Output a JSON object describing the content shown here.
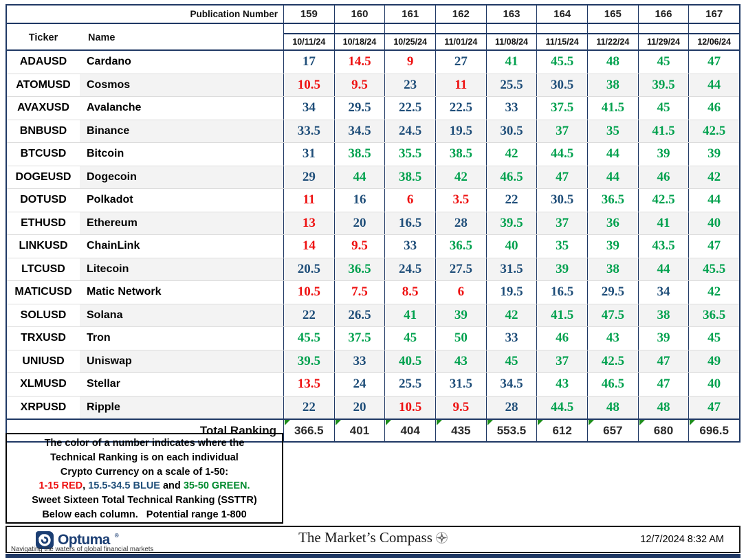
{
  "header": {
    "publication_label": "Publication Number",
    "publication_numbers": [
      "159",
      "160",
      "161",
      "162",
      "163",
      "164",
      "165",
      "166",
      "167"
    ],
    "ticker_label": "Ticker",
    "name_label": "Name",
    "dates": [
      "10/11/24",
      "10/18/24",
      "10/25/24",
      "11/01/24",
      "11/08/24",
      "11/15/24",
      "11/22/24",
      "11/29/24",
      "12/06/24"
    ]
  },
  "rows": [
    {
      "ticker": "ADAUSD",
      "name": "Cardano",
      "values": [
        17,
        14.5,
        9,
        27,
        41,
        45.5,
        48,
        45,
        47
      ]
    },
    {
      "ticker": "ATOMUSD",
      "name": "Cosmos",
      "values": [
        10.5,
        9.5,
        23,
        11,
        25.5,
        30.5,
        38,
        39.5,
        44
      ]
    },
    {
      "ticker": "AVAXUSD",
      "name": "Avalanche",
      "values": [
        34,
        29.5,
        22.5,
        22.5,
        33,
        37.5,
        41.5,
        45,
        46
      ]
    },
    {
      "ticker": "BNBUSD",
      "name": "Binance",
      "values": [
        33.5,
        34.5,
        24.5,
        19.5,
        30.5,
        37,
        35,
        41.5,
        42.5
      ]
    },
    {
      "ticker": "BTCUSD",
      "name": "Bitcoin",
      "values": [
        31,
        38.5,
        35.5,
        38.5,
        42,
        44.5,
        44,
        39,
        39
      ]
    },
    {
      "ticker": "DOGEUSD",
      "name": "Dogecoin",
      "values": [
        29,
        44,
        38.5,
        42,
        46.5,
        47,
        44,
        46,
        42
      ]
    },
    {
      "ticker": "DOTUSD",
      "name": "Polkadot",
      "values": [
        11,
        16,
        6,
        3.5,
        22,
        30.5,
        36.5,
        42.5,
        44
      ]
    },
    {
      "ticker": "ETHUSD",
      "name": "Ethereum",
      "values": [
        13,
        20,
        16.5,
        28,
        39.5,
        37,
        36,
        41,
        40
      ]
    },
    {
      "ticker": "LINKUSD",
      "name": "ChainLink",
      "values": [
        14,
        9.5,
        33,
        36.5,
        40,
        35,
        39,
        43.5,
        47
      ]
    },
    {
      "ticker": "LTCUSD",
      "name": "Litecoin",
      "values": [
        20.5,
        36.5,
        24.5,
        27.5,
        31.5,
        39,
        38,
        44,
        45.5
      ]
    },
    {
      "ticker": "MATICUSD",
      "name": "Matic Network",
      "values": [
        10.5,
        7.5,
        8.5,
        6,
        19.5,
        16.5,
        29.5,
        34,
        42
      ]
    },
    {
      "ticker": "SOLUSD",
      "name": "Solana",
      "values": [
        22,
        26.5,
        41,
        39,
        42,
        41.5,
        47.5,
        38,
        36.5
      ]
    },
    {
      "ticker": "TRXUSD",
      "name": "Tron",
      "values": [
        45.5,
        37.5,
        45,
        50,
        33,
        46,
        43,
        39,
        45
      ]
    },
    {
      "ticker": "UNIUSD",
      "name": "Uniswap",
      "values": [
        39.5,
        33,
        40.5,
        43,
        45,
        37,
        42.5,
        47,
        49
      ]
    },
    {
      "ticker": "XLMUSD",
      "name": "Stellar",
      "values": [
        13.5,
        24,
        25.5,
        31.5,
        34.5,
        43,
        46.5,
        47,
        40
      ]
    },
    {
      "ticker": "XRPUSD",
      "name": "Ripple",
      "values": [
        22,
        20,
        10.5,
        9.5,
        28,
        44.5,
        48,
        48,
        47
      ]
    }
  ],
  "total": {
    "label": "Total Ranking",
    "values": [
      366.5,
      401,
      404,
      435,
      553.5,
      612,
      657,
      680,
      696.5
    ]
  },
  "legend": {
    "line1": "The color of a number indicates where the",
    "line2": "Technical Ranking is on each individual",
    "line3": "Crypto Currency on a scale of 1-50:",
    "range_red": "1-15 RED",
    "sep": ", ",
    "range_blue": "15.5-34.5 BLUE",
    "and_word": " and ",
    "range_green": "35-50 GREEN.",
    "line5": "Sweet Sixteen Total Technical Ranking (SSTTR)",
    "line6": "Below each column.   Potential range 1-800",
    "thresholds": {
      "red_max": 15,
      "blue_max": 34.5
    }
  },
  "footer": {
    "brand": "Optuma",
    "brand_reg": "®",
    "title": "The Market’s Compass",
    "subtitle": "Navigating the waters of global financial markets",
    "timestamp": "12/7/2024 8:32 AM"
  },
  "colors": {
    "red": "#ee1111",
    "blue": "#1f4e79",
    "green": "#00a14e",
    "navy": "#1f3864",
    "stripe": "#f3f3f3"
  }
}
